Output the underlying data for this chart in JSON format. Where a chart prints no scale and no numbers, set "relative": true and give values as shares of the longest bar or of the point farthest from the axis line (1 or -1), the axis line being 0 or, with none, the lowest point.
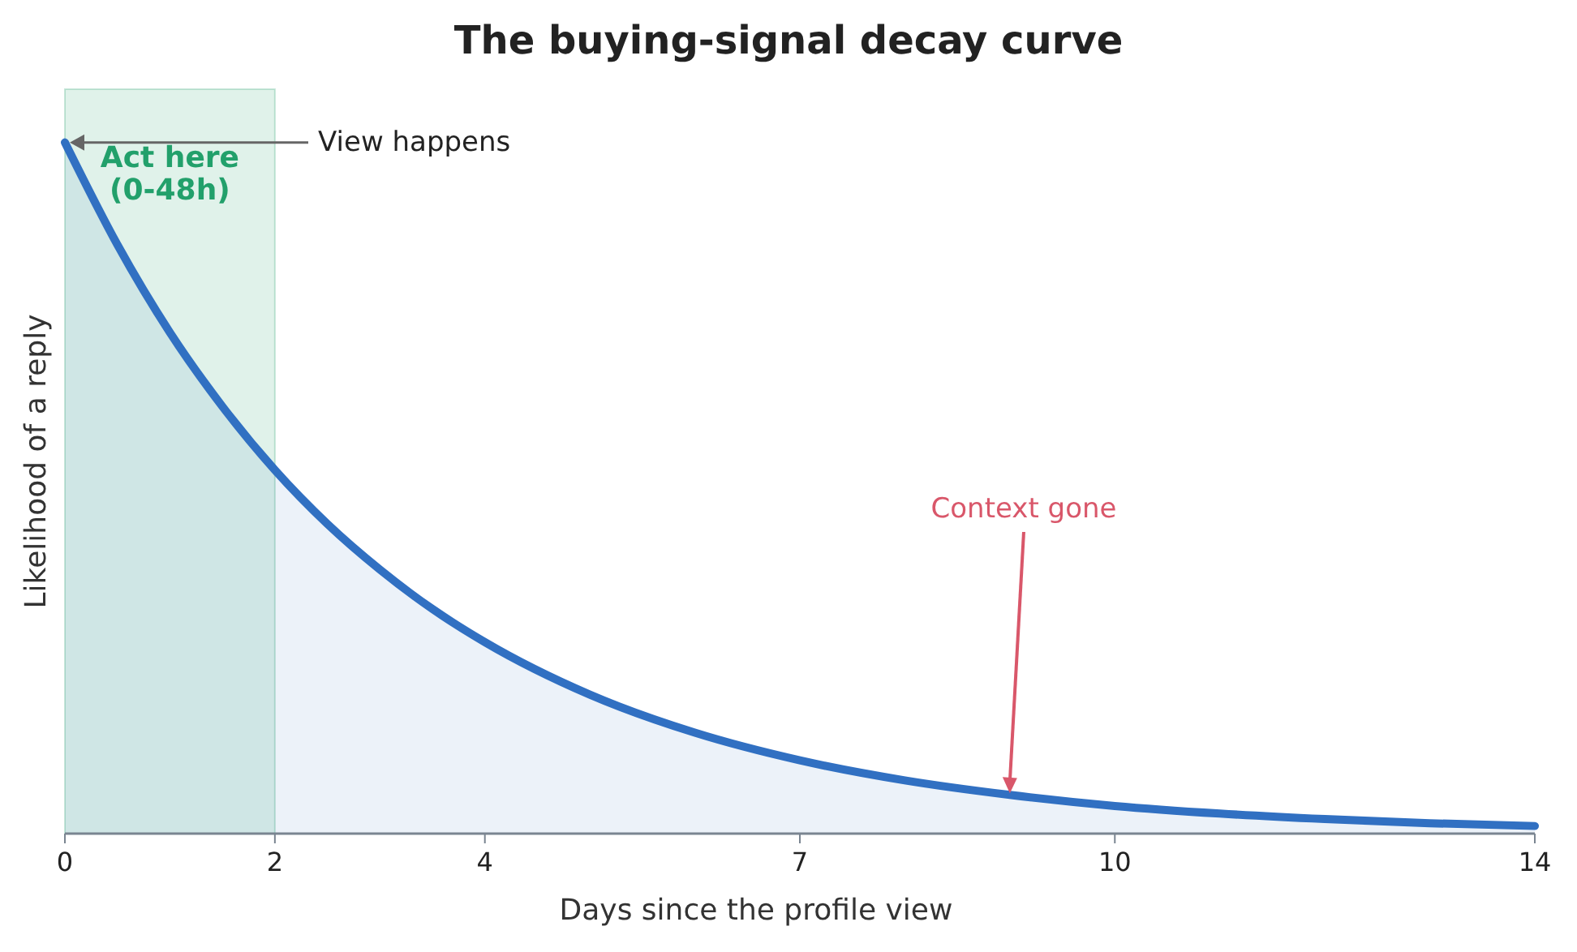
{
  "chart_data": {
    "type": "area",
    "title": "The buying-signal decay curve",
    "xlabel": "Days since the profile view",
    "ylabel": "Likelihood of a reply",
    "relative": true,
    "x": [
      0,
      0.5,
      1,
      1.5,
      2,
      2.5,
      3,
      3.5,
      4,
      5,
      6,
      7,
      8,
      9,
      10,
      11,
      12,
      13,
      14
    ],
    "series": [
      {
        "color": "#3170c2",
        "values": [
          1,
          0.852,
          0.725,
          0.618,
          0.526,
          0.448,
          0.382,
          0.325,
          0.277,
          0.201,
          0.146,
          0.106,
          0.077,
          0.056,
          0.04,
          0.029,
          0.021,
          0.015,
          0.011
        ]
      }
    ],
    "xlim": [
      0,
      14
    ],
    "xticks": [
      0,
      2,
      4,
      7,
      10,
      14
    ],
    "bands": [
      {
        "axis": "x",
        "from": 0,
        "to": 2,
        "label": "Act here\n(0-48h)",
        "color": "#22a06b"
      }
    ],
    "annotations": [
      {
        "text": "View happens",
        "x": 0,
        "y": 1
      },
      {
        "text": "Context gone",
        "x": 9,
        "y": 0.056
      }
    ],
    "grid": false
  }
}
